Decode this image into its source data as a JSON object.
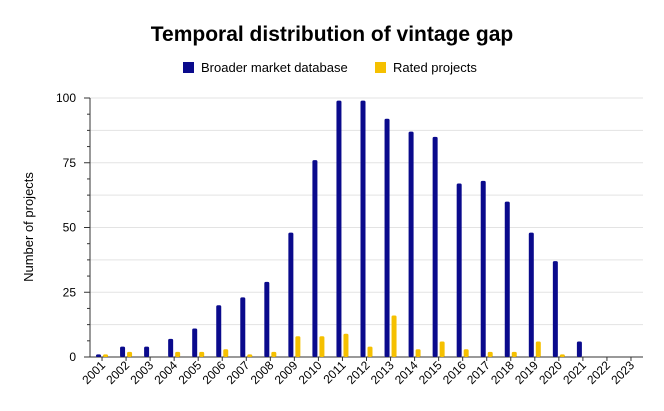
{
  "chart_data": {
    "type": "bar",
    "title": "Temporal distribution of vintage gap",
    "xlabel": "",
    "ylabel": "Number of projects",
    "ylim": [
      0,
      100
    ],
    "yticks": [
      0,
      25,
      50,
      75,
      100
    ],
    "grid": true,
    "legend_position": "top",
    "categories": [
      "2001",
      "2002",
      "2003",
      "2004",
      "2005",
      "2006",
      "2007",
      "2008",
      "2009",
      "2010",
      "2011",
      "2012",
      "2013",
      "2014",
      "2015",
      "2016",
      "2017",
      "2018",
      "2019",
      "2020",
      "2021",
      "2022",
      "2023"
    ],
    "series": [
      {
        "name": "Broader market database",
        "color": "#0a0a8c",
        "values": [
          1,
          4,
          4,
          7,
          11,
          20,
          23,
          29,
          48,
          76,
          99,
          99,
          92,
          87,
          85,
          67,
          68,
          60,
          48,
          37,
          6,
          0,
          0
        ]
      },
      {
        "name": "Rated projects",
        "color": "#f5c000",
        "values": [
          1,
          2,
          0,
          2,
          2,
          3,
          1,
          2,
          8,
          8,
          9,
          4,
          16,
          3,
          6,
          3,
          2,
          2,
          6,
          1,
          0,
          0,
          0
        ]
      }
    ]
  }
}
